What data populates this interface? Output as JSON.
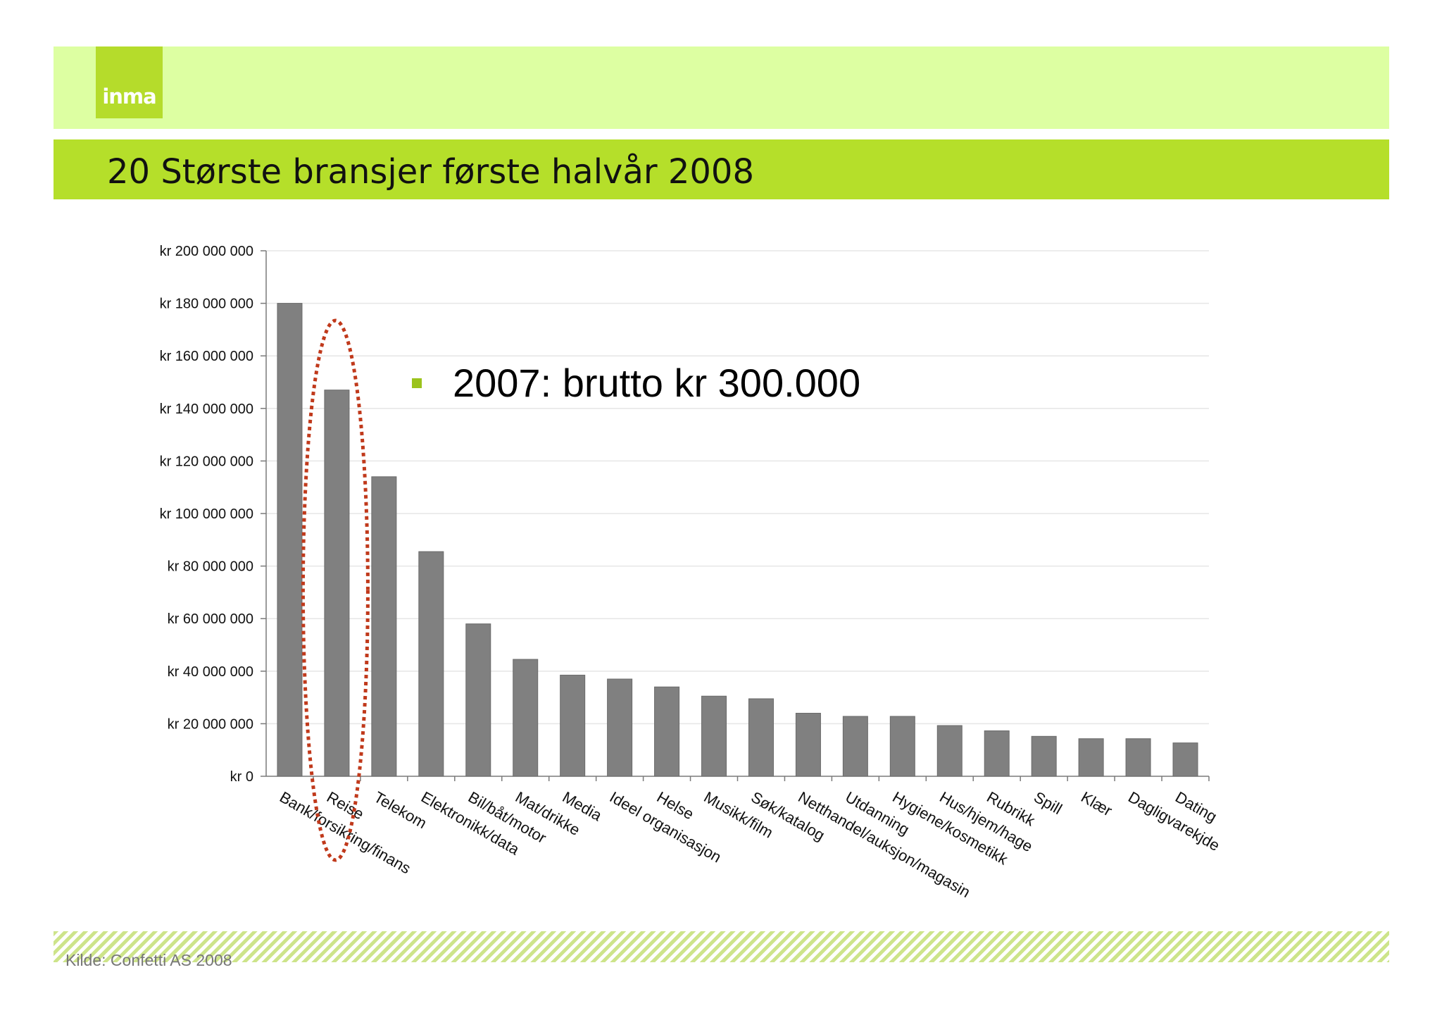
{
  "header": {
    "logo_text": "inma",
    "title": "20 Største bransjer første halvår 2008"
  },
  "annotation": {
    "bullet_text": "2007: brutto kr 300.000",
    "bullet_color": "#9bc31c",
    "highlight_color": "#c0391b",
    "highlighted_category": "Reise"
  },
  "footer": {
    "source": "Kilde: Confetti AS 2008"
  },
  "chart_data": {
    "type": "bar",
    "title": "",
    "xlabel": "",
    "ylabel": "",
    "ylim": [
      0,
      200000000
    ],
    "y_ticks": [
      0,
      20000000,
      40000000,
      60000000,
      80000000,
      100000000,
      120000000,
      140000000,
      160000000,
      180000000,
      200000000
    ],
    "y_tick_labels": [
      "kr 0",
      "kr 20 000 000",
      "kr 40 000 000",
      "kr 60 000 000",
      "kr 80 000 000",
      "kr 100 000 000",
      "kr 120 000 000",
      "kr 140 000 000",
      "kr 160 000 000",
      "kr 180 000 000",
      "kr 200 000 000"
    ],
    "grid": true,
    "bar_color": "#808080",
    "categories": [
      "Bank/forsikring/finans",
      "Reise",
      "Telekom",
      "Elektronikk/data",
      "Bil/båt/motor",
      "Mat/drikke",
      "Media",
      "Ideel organisasjon",
      "Helse",
      "Musikk/film",
      "Søk/katalog",
      "Netthandel/auksjon/magasin",
      "Utdanning",
      "Hygiene/kosmetikk",
      "Hus/hjem/hage",
      "Rubrikk",
      "Spill",
      "Klær",
      "Dagligvarekjde",
      "Dating"
    ],
    "values": [
      180000000,
      147000000,
      114000000,
      85500000,
      58000000,
      44500000,
      38500000,
      37000000,
      34000000,
      30500000,
      29500000,
      24000000,
      22800000,
      22800000,
      19300000,
      17300000,
      15200000,
      14300000,
      14300000,
      12700000
    ]
  }
}
